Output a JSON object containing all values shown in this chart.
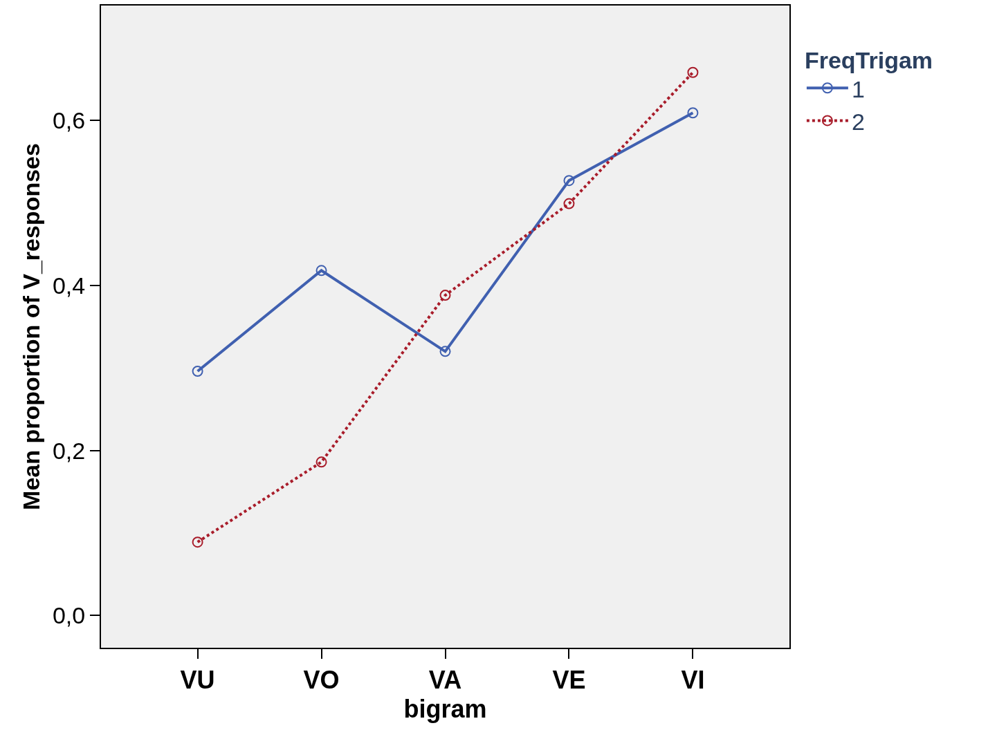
{
  "chart_data": {
    "type": "line",
    "xlabel": "bigram",
    "ylabel": "Mean proportion of V_responses",
    "legend_title": "FreqTrigam",
    "categories": [
      "VU",
      "VO",
      "VA",
      "VE",
      "VI"
    ],
    "series": [
      {
        "name": "1",
        "color": "#4060b0",
        "line_style": "solid",
        "values": [
          0.296,
          0.418,
          0.32,
          0.527,
          0.609
        ]
      },
      {
        "name": "2",
        "color": "#a81c2a",
        "line_style": "dotted",
        "values": [
          0.089,
          0.186,
          0.388,
          0.499,
          0.658
        ]
      }
    ],
    "ylim": [
      -0.039,
      0.739
    ],
    "yticks": [
      {
        "value": 0,
        "label": "0,0"
      },
      {
        "value": 0.2,
        "label": "0,2"
      },
      {
        "value": 0.4,
        "label": "0,4"
      },
      {
        "value": 0.6,
        "label": "0,6"
      }
    ],
    "grid": false,
    "legend": "top right",
    "marker": "circle"
  }
}
